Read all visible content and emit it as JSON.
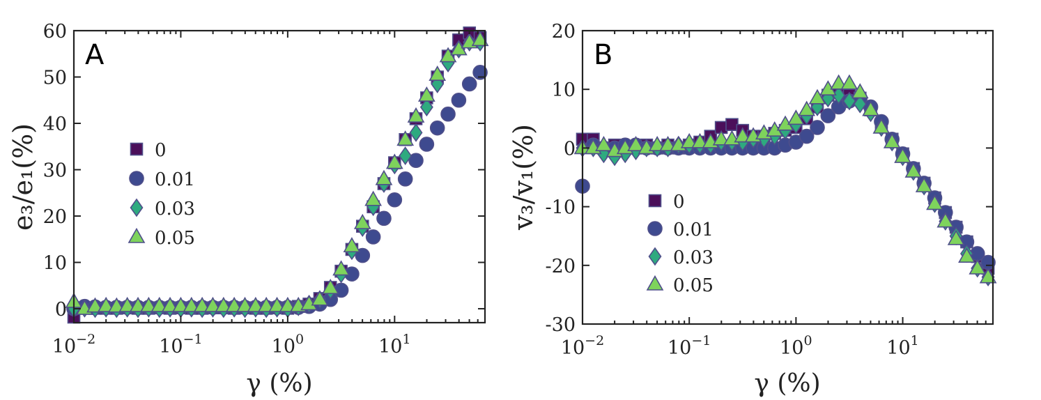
{
  "colors": {
    "s0": "#4b0f5a",
    "s001": "#3e4a8f",
    "s003": "#2eaa7f",
    "s005": "#7ed35c",
    "edge": "#4f4f8a"
  },
  "chart_data": [
    {
      "type": "scatter",
      "panel_label": "A",
      "xlabel": "γ (%)",
      "ylabel": "e₃/e₁(%)",
      "xscale": "log",
      "xlim": [
        0.01,
        70
      ],
      "ylim": [
        -3,
        60
      ],
      "xticks": [
        0.01,
        0.1,
        1,
        10
      ],
      "xtick_labels": [
        {
          "base": "10",
          "exp": "−2"
        },
        {
          "base": "10",
          "exp": "−1"
        },
        {
          "base": "10",
          "exp": "0"
        },
        {
          "base": "10",
          "exp": "1"
        }
      ],
      "yticks": [
        0,
        10,
        20,
        30,
        40,
        50,
        60
      ],
      "ytick_labels": [
        "0",
        "10",
        "20",
        "30",
        "40",
        "50",
        "60"
      ],
      "legend_title": "",
      "legend": [
        "0",
        "0.01",
        "0.03",
        "0.05"
      ],
      "x": [
        0.01,
        0.0126,
        0.0158,
        0.02,
        0.0251,
        0.0316,
        0.0398,
        0.0501,
        0.0631,
        0.0794,
        0.1,
        0.1259,
        0.1585,
        0.1995,
        0.2512,
        0.3162,
        0.3981,
        0.5012,
        0.631,
        0.7943,
        1.0,
        1.2589,
        1.5849,
        1.9953,
        2.5119,
        3.1623,
        3.9811,
        5.0119,
        6.3096,
        7.9433,
        10.0,
        12.589,
        15.849,
        19.953,
        25.119,
        31.623,
        39.811,
        50.119,
        63.096
      ],
      "series": [
        {
          "name": "0",
          "marker": "square",
          "color": "s0",
          "values": [
            -1.8,
            0.2,
            0.1,
            0.1,
            0.1,
            0.2,
            0.1,
            0.1,
            0.2,
            0.1,
            0.2,
            0.1,
            0.1,
            0.2,
            0.2,
            0.1,
            0.2,
            0.1,
            0.1,
            0.2,
            0.1,
            0.5,
            1.0,
            2.2,
            4.6,
            8.1,
            12.8,
            17.8,
            22.0,
            27.0,
            31.5,
            36.5,
            41.0,
            45.5,
            50.0,
            54.5,
            58.0,
            59.5,
            58.5
          ]
        },
        {
          "name": "0.01",
          "marker": "circle",
          "color": "s001",
          "values": [
            0.0,
            0.5,
            0.4,
            0.3,
            0.3,
            0.3,
            0.3,
            0.3,
            0.3,
            0.3,
            0.3,
            0.3,
            0.3,
            0.3,
            0.3,
            0.3,
            0.3,
            0.3,
            0.3,
            0.3,
            0.3,
            0.3,
            0.5,
            1.0,
            2.0,
            4.0,
            7.5,
            11.5,
            15.5,
            19.5,
            23.5,
            28.0,
            32.0,
            35.5,
            39.0,
            42.0,
            45.0,
            48.5,
            51.0
          ]
        },
        {
          "name": "0.03",
          "marker": "diamond",
          "color": "s003",
          "values": [
            0.0,
            0.1,
            0.0,
            0.1,
            0.0,
            0.1,
            0.0,
            0.1,
            0.0,
            0.1,
            0.0,
            0.1,
            0.0,
            0.1,
            0.0,
            0.1,
            0.0,
            0.1,
            0.0,
            0.1,
            0.0,
            0.4,
            1.0,
            2.0,
            4.0,
            7.5,
            12.5,
            17.5,
            22.0,
            27.0,
            31.0,
            33.0,
            38.0,
            43.5,
            48.5,
            53.0,
            56.0,
            57.5,
            57.5
          ]
        },
        {
          "name": "0.05",
          "marker": "triangle",
          "color": "s005",
          "values": [
            1.5,
            0.0,
            0.5,
            0.6,
            0.5,
            0.6,
            0.6,
            0.6,
            0.6,
            0.6,
            0.6,
            0.6,
            0.6,
            0.6,
            0.6,
            0.6,
            0.6,
            0.6,
            0.6,
            0.6,
            0.6,
            0.6,
            1.0,
            2.0,
            4.5,
            8.5,
            13.5,
            18.5,
            23.5,
            28.0,
            31.5,
            36.5,
            41.5,
            46.0,
            50.5,
            54.5,
            56.0,
            57.5,
            58.0
          ]
        }
      ]
    },
    {
      "type": "scatter",
      "panel_label": "B",
      "xlabel": "γ (%)",
      "ylabel": "v₃/v₁(%)",
      "xscale": "log",
      "xlim": [
        0.01,
        70
      ],
      "ylim": [
        -30,
        20
      ],
      "xticks": [
        0.01,
        0.1,
        1,
        10
      ],
      "xtick_labels": [
        {
          "base": "10",
          "exp": "−2"
        },
        {
          "base": "10",
          "exp": "−1"
        },
        {
          "base": "10",
          "exp": "0"
        },
        {
          "base": "10",
          "exp": "1"
        }
      ],
      "yticks": [
        -30,
        -20,
        -10,
        0,
        10,
        20
      ],
      "ytick_labels": [
        "-30",
        "-20",
        "-10",
        "0",
        "10",
        "20"
      ],
      "legend": [
        "0",
        "0.01",
        "0.03",
        "0.05"
      ],
      "x": [
        0.01,
        0.0126,
        0.0158,
        0.02,
        0.0251,
        0.0316,
        0.0398,
        0.0501,
        0.0631,
        0.0794,
        0.1,
        0.1259,
        0.1585,
        0.1995,
        0.2512,
        0.3162,
        0.3981,
        0.5012,
        0.631,
        0.7943,
        1.0,
        1.2589,
        1.5849,
        1.9953,
        2.5119,
        3.1623,
        3.9811,
        5.0119,
        6.3096,
        7.9433,
        10.0,
        12.589,
        15.849,
        19.953,
        25.119,
        31.623,
        39.811,
        50.119,
        63.096
      ],
      "series": [
        {
          "name": "0",
          "marker": "square",
          "color": "s0",
          "values": [
            1.5,
            1.5,
            0.0,
            0.5,
            0.0,
            0.0,
            0.5,
            0.0,
            0.5,
            0.0,
            0.5,
            1.0,
            2.0,
            3.5,
            4.0,
            3.0,
            2.0,
            2.0,
            2.5,
            3.0,
            3.5,
            5.0,
            7.0,
            9.0,
            9.5,
            9.0,
            8.5,
            6.5,
            4.0,
            1.5,
            -1.0,
            -3.5,
            -6.0,
            -8.5,
            -11.0,
            -13.5,
            -16.0,
            -18.5,
            -20.5
          ]
        },
        {
          "name": "0.01",
          "marker": "circle",
          "color": "s001",
          "values": [
            -6.5,
            0.5,
            0.0,
            0.0,
            0.5,
            0.5,
            0.0,
            0.0,
            0.0,
            0.0,
            0.0,
            0.0,
            0.0,
            0.0,
            0.0,
            0.0,
            0.0,
            0.0,
            0.0,
            0.5,
            1.0,
            2.0,
            3.5,
            5.5,
            7.0,
            8.0,
            8.5,
            7.0,
            4.5,
            1.5,
            -1.0,
            -3.5,
            -6.0,
            -8.5,
            -11.0,
            -13.5,
            -16.0,
            -18.0,
            -19.5
          ]
        },
        {
          "name": "0.03",
          "marker": "diamond",
          "color": "s003",
          "values": [
            0.0,
            0.0,
            -1.0,
            -1.5,
            -1.0,
            -0.5,
            0.0,
            0.0,
            0.0,
            0.5,
            0.5,
            0.5,
            0.5,
            1.0,
            1.0,
            1.0,
            1.5,
            1.5,
            2.0,
            3.0,
            4.0,
            5.5,
            7.0,
            8.5,
            9.0,
            8.0,
            7.5,
            6.0,
            3.5,
            1.0,
            -1.5,
            -4.0,
            -6.5,
            -9.5,
            -12.5,
            -15.0,
            -18.0,
            -20.5,
            -22.0
          ]
        },
        {
          "name": "0.05",
          "marker": "triangle",
          "color": "s005",
          "values": [
            0.0,
            0.0,
            0.5,
            -0.5,
            0.0,
            0.5,
            0.0,
            0.5,
            0.5,
            0.5,
            1.0,
            1.0,
            1.0,
            1.5,
            1.5,
            2.0,
            2.0,
            2.5,
            3.0,
            4.0,
            5.0,
            6.5,
            8.5,
            10.0,
            11.0,
            11.0,
            9.5,
            6.5,
            3.5,
            1.0,
            -1.5,
            -4.0,
            -6.5,
            -9.5,
            -12.5,
            -15.5,
            -18.5,
            -20.5,
            -22.0
          ]
        }
      ]
    }
  ]
}
